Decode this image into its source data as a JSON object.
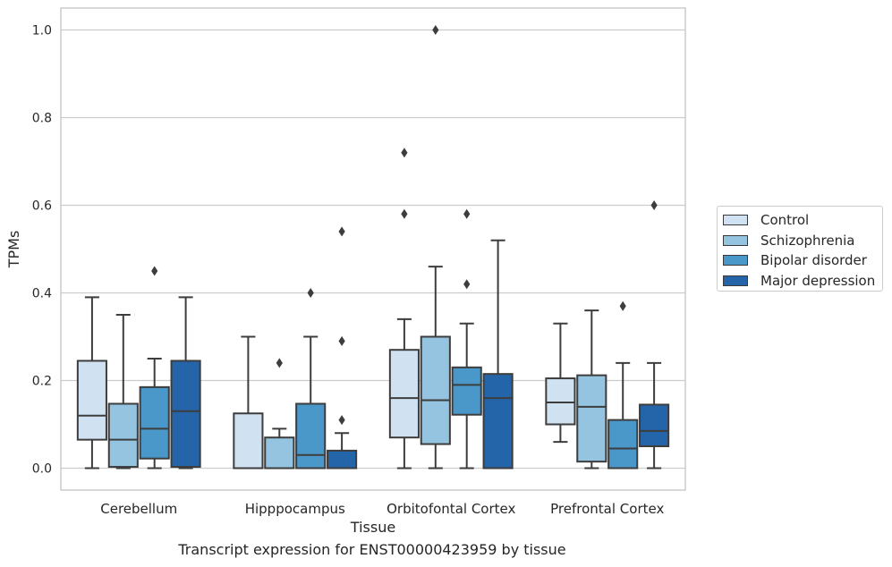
{
  "chart_data": {
    "type": "box",
    "title": "",
    "caption": "Transcript expression for ENST00000423959 by tissue",
    "xlabel": "Tissue",
    "ylabel": "TPMs",
    "ylim": [
      -0.05,
      1.05
    ],
    "yticks": [
      0.0,
      0.2,
      0.4,
      0.6,
      0.8,
      1.0
    ],
    "ytick_labels": [
      "0.0",
      "0.2",
      "0.4",
      "0.6",
      "0.8",
      "1.0"
    ],
    "grid": "horizontal",
    "legend_position": "right",
    "categories": [
      "Cerebellum",
      "Hipppocampus",
      "Orbitofontal Cortex",
      "Prefrontal Cortex"
    ],
    "series": [
      {
        "name": "Control",
        "color": "#d0e1f2",
        "boxes": [
          {
            "whislo": 0.0,
            "q1": 0.065,
            "med": 0.12,
            "q3": 0.245,
            "whishi": 0.39,
            "fliers": []
          },
          {
            "whislo": 0.0,
            "q1": 0.0,
            "med": 0.0,
            "q3": 0.125,
            "whishi": 0.3,
            "fliers": []
          },
          {
            "whislo": 0.0,
            "q1": 0.07,
            "med": 0.16,
            "q3": 0.27,
            "whishi": 0.34,
            "fliers": [
              0.58,
              0.72
            ]
          },
          {
            "whislo": 0.06,
            "q1": 0.1,
            "med": 0.15,
            "q3": 0.205,
            "whishi": 0.33,
            "fliers": []
          }
        ]
      },
      {
        "name": "Schizophrenia",
        "color": "#94c4df",
        "boxes": [
          {
            "whislo": 0.0,
            "q1": 0.003,
            "med": 0.065,
            "q3": 0.147,
            "whishi": 0.35,
            "fliers": []
          },
          {
            "whislo": 0.0,
            "q1": 0.0,
            "med": 0.0,
            "q3": 0.07,
            "whishi": 0.09,
            "fliers": [
              0.24
            ]
          },
          {
            "whislo": 0.0,
            "q1": 0.055,
            "med": 0.155,
            "q3": 0.3,
            "whishi": 0.46,
            "fliers": [
              1.0
            ]
          },
          {
            "whislo": 0.0,
            "q1": 0.015,
            "med": 0.14,
            "q3": 0.212,
            "whishi": 0.36,
            "fliers": []
          }
        ]
      },
      {
        "name": "Bipolar disorder",
        "color": "#4a98c9",
        "boxes": [
          {
            "whislo": 0.0,
            "q1": 0.022,
            "med": 0.09,
            "q3": 0.185,
            "whishi": 0.25,
            "fliers": [
              0.45
            ]
          },
          {
            "whislo": 0.0,
            "q1": 0.0,
            "med": 0.03,
            "q3": 0.147,
            "whishi": 0.3,
            "fliers": [
              0.4
            ]
          },
          {
            "whislo": 0.0,
            "q1": 0.122,
            "med": 0.19,
            "q3": 0.23,
            "whishi": 0.33,
            "fliers": [
              0.42,
              0.58
            ]
          },
          {
            "whislo": 0.0,
            "q1": 0.0,
            "med": 0.045,
            "q3": 0.11,
            "whishi": 0.24,
            "fliers": [
              0.37
            ]
          }
        ]
      },
      {
        "name": "Major depression",
        "color": "#2464a8",
        "boxes": [
          {
            "whislo": 0.0,
            "q1": 0.003,
            "med": 0.13,
            "q3": 0.245,
            "whishi": 0.39,
            "fliers": []
          },
          {
            "whislo": 0.0,
            "q1": 0.0,
            "med": 0.0,
            "q3": 0.04,
            "whishi": 0.08,
            "fliers": [
              0.11,
              0.29,
              0.54
            ]
          },
          {
            "whislo": 0.0,
            "q1": 0.0,
            "med": 0.16,
            "q3": 0.215,
            "whishi": 0.52,
            "fliers": []
          },
          {
            "whislo": 0.0,
            "q1": 0.05,
            "med": 0.085,
            "q3": 0.145,
            "whishi": 0.24,
            "fliers": [
              0.6
            ]
          }
        ]
      }
    ]
  }
}
